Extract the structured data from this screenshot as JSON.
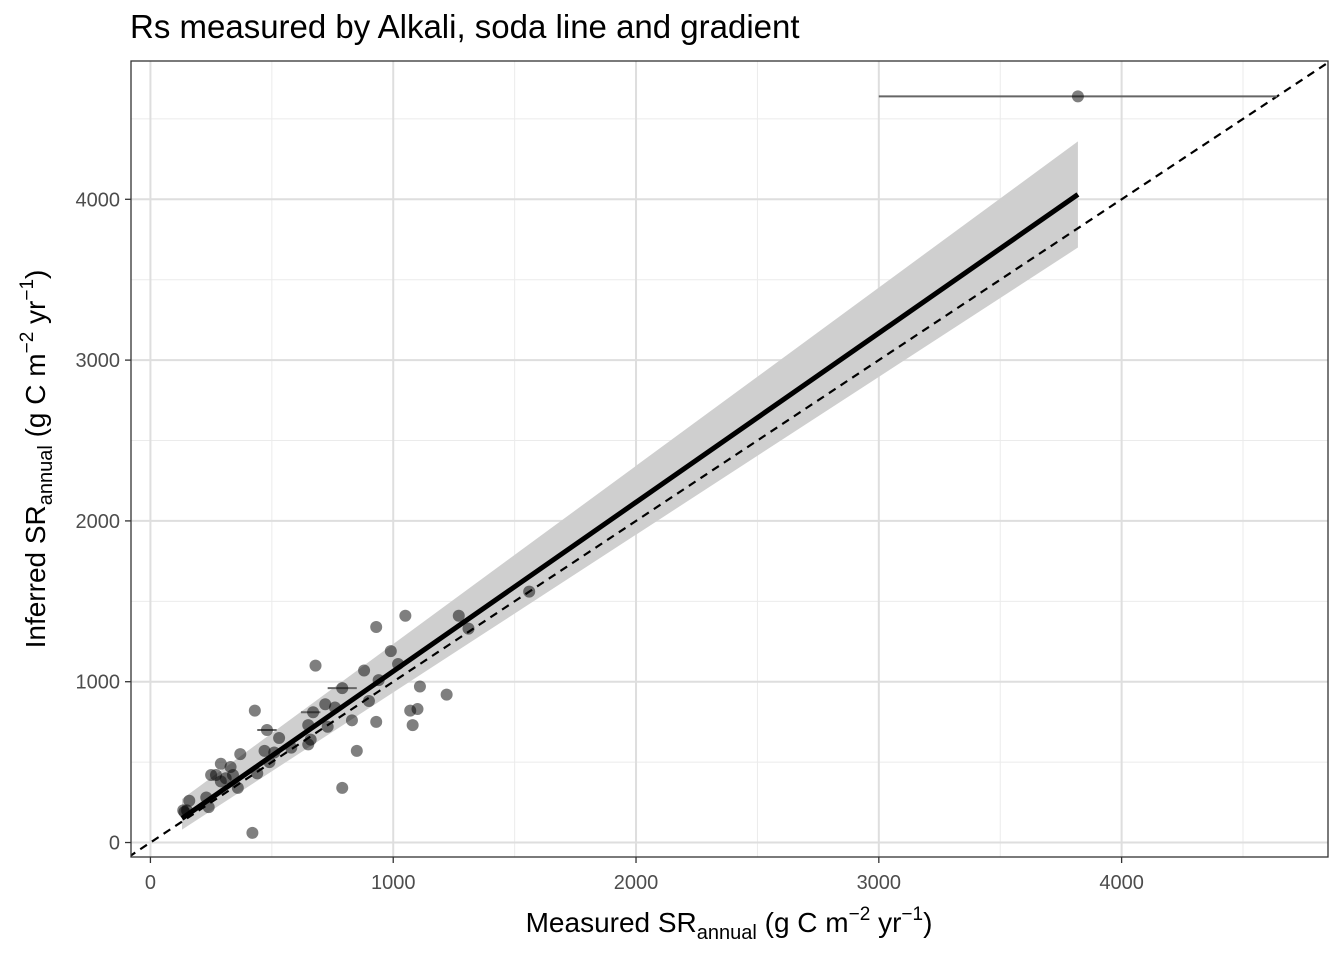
{
  "chart_data": {
    "type": "scatter",
    "title": "Rs measured by Alkali, soda line and gradient",
    "xlabel": {
      "main": "Measured SR",
      "sub": "annual",
      "unit_open": " (g C m",
      "exp1": "−2",
      "unit_mid": " yr",
      "exp2": "−1",
      "unit_close": ")"
    },
    "ylabel": {
      "main": "Inferred SR",
      "sub": "annual",
      "unit_open": " (g C m",
      "exp1": "−2",
      "unit_mid": " yr",
      "exp2": "−1",
      "unit_close": ")"
    },
    "xlim": [
      -80,
      4850
    ],
    "ylim": [
      -90,
      4860
    ],
    "x_ticks": [
      0,
      1000,
      2000,
      3000,
      4000
    ],
    "x_tick_labels": [
      "0",
      "1000",
      "2000",
      "3000",
      "4000"
    ],
    "y_ticks": [
      0,
      1000,
      2000,
      3000,
      4000
    ],
    "y_tick_labels": [
      "0",
      "1000",
      "2000",
      "3000",
      "4000"
    ],
    "x_minor": [
      500,
      1500,
      2500,
      3500,
      4500
    ],
    "y_minor": [
      500,
      1500,
      2500,
      3500,
      4500
    ],
    "grid": true,
    "reference_line": {
      "type": "1:1",
      "style": "dashed",
      "color": "#000000"
    },
    "fit": {
      "x": [
        130,
        3820
      ],
      "y": [
        150,
        4030
      ],
      "ci_lower": [
        80,
        3700
      ],
      "ci_upper": [
        270,
        4360
      ],
      "color": "#000000",
      "band_color": "#cfcfcf"
    },
    "point_color": "#000000",
    "point_alpha": 0.5,
    "points": [
      {
        "x": 3820,
        "y": 4640,
        "xerr": [
          3000,
          4640
        ]
      },
      {
        "x": 1560,
        "y": 1560
      },
      {
        "x": 1270,
        "y": 1410
      },
      {
        "x": 1310,
        "y": 1330
      },
      {
        "x": 1220,
        "y": 920
      },
      {
        "x": 1050,
        "y": 1410
      },
      {
        "x": 930,
        "y": 1340
      },
      {
        "x": 990,
        "y": 1190
      },
      {
        "x": 1020,
        "y": 1110
      },
      {
        "x": 880,
        "y": 1070
      },
      {
        "x": 940,
        "y": 1010
      },
      {
        "x": 900,
        "y": 880
      },
      {
        "x": 1110,
        "y": 970
      },
      {
        "x": 1070,
        "y": 820
      },
      {
        "x": 1100,
        "y": 830
      },
      {
        "x": 1080,
        "y": 730
      },
      {
        "x": 930,
        "y": 750
      },
      {
        "x": 830,
        "y": 760
      },
      {
        "x": 850,
        "y": 570
      },
      {
        "x": 790,
        "y": 340
      },
      {
        "x": 790,
        "y": 960,
        "xerr": [
          730,
          850
        ]
      },
      {
        "x": 760,
        "y": 840
      },
      {
        "x": 720,
        "y": 860
      },
      {
        "x": 730,
        "y": 720
      },
      {
        "x": 680,
        "y": 1100
      },
      {
        "x": 670,
        "y": 810,
        "xerr": [
          620,
          700
        ]
      },
      {
        "x": 650,
        "y": 730
      },
      {
        "x": 660,
        "y": 640
      },
      {
        "x": 650,
        "y": 610
      },
      {
        "x": 580,
        "y": 590
      },
      {
        "x": 530,
        "y": 650
      },
      {
        "x": 480,
        "y": 700,
        "xerr": [
          440,
          520
        ]
      },
      {
        "x": 470,
        "y": 570
      },
      {
        "x": 490,
        "y": 500
      },
      {
        "x": 510,
        "y": 560
      },
      {
        "x": 430,
        "y": 820
      },
      {
        "x": 440,
        "y": 430
      },
      {
        "x": 420,
        "y": 60
      },
      {
        "x": 370,
        "y": 550
      },
      {
        "x": 360,
        "y": 340
      },
      {
        "x": 330,
        "y": 470
      },
      {
        "x": 340,
        "y": 420
      },
      {
        "x": 310,
        "y": 400
      },
      {
        "x": 290,
        "y": 490
      },
      {
        "x": 290,
        "y": 380
      },
      {
        "x": 270,
        "y": 420
      },
      {
        "x": 250,
        "y": 420
      },
      {
        "x": 240,
        "y": 220
      },
      {
        "x": 230,
        "y": 280
      },
      {
        "x": 160,
        "y": 260
      },
      {
        "x": 150,
        "y": 200
      },
      {
        "x": 140,
        "y": 190
      },
      {
        "x": 135,
        "y": 200
      }
    ]
  }
}
